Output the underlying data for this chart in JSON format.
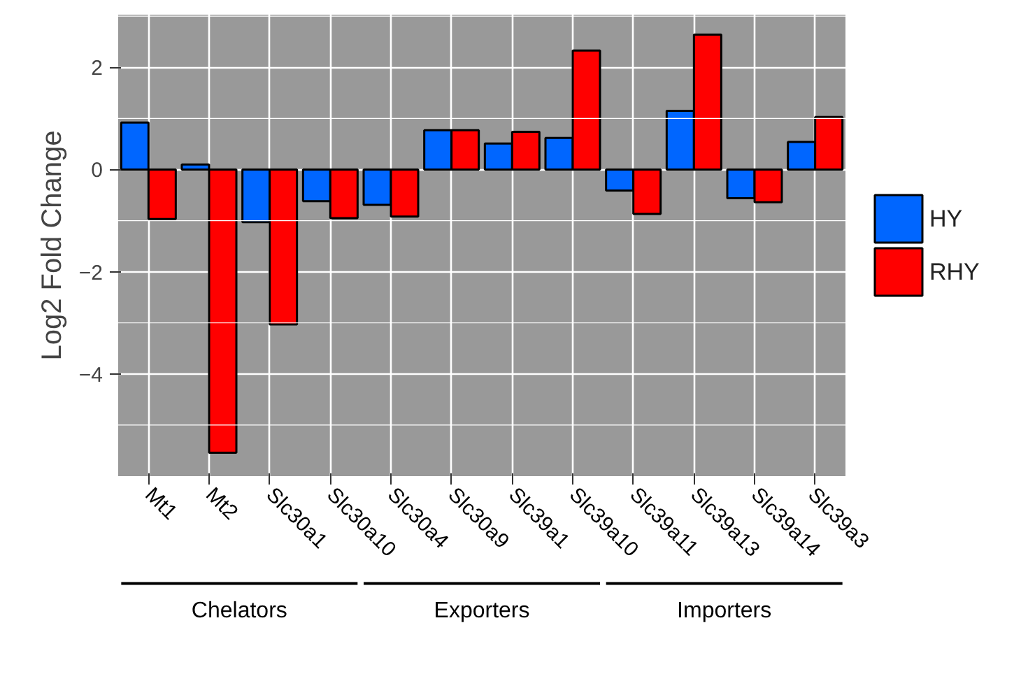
{
  "chart_data": {
    "type": "bar",
    "ylabel": "Log2 Fold Change",
    "categories": [
      "Mt1",
      "Mt2",
      "Slc30a1",
      "Slc30a10",
      "Slc30a4",
      "Slc30a9",
      "Slc39a1",
      "Slc39a10",
      "Slc39a11",
      "Slc39a13",
      "Slc39a14",
      "Slc39a3"
    ],
    "series": [
      {
        "name": "HY",
        "color": "#0066ff",
        "values": [
          0.92,
          0.1,
          -1.03,
          -0.62,
          -0.69,
          0.77,
          0.51,
          0.62,
          -0.41,
          1.15,
          -0.56,
          0.54
        ]
      },
      {
        "name": "RHY",
        "color": "#ff0000",
        "values": [
          -0.97,
          -5.54,
          -3.03,
          -0.95,
          -0.92,
          0.77,
          0.74,
          2.33,
          -0.87,
          2.64,
          -0.64,
          1.03
        ]
      }
    ],
    "ylim": [
      -6.0,
      3.03
    ],
    "yticks": [
      -4,
      -2,
      0,
      2
    ],
    "grid": true,
    "legend": "right",
    "annotations": [
      "Chelators",
      "Exporters",
      "Importers"
    ]
  }
}
